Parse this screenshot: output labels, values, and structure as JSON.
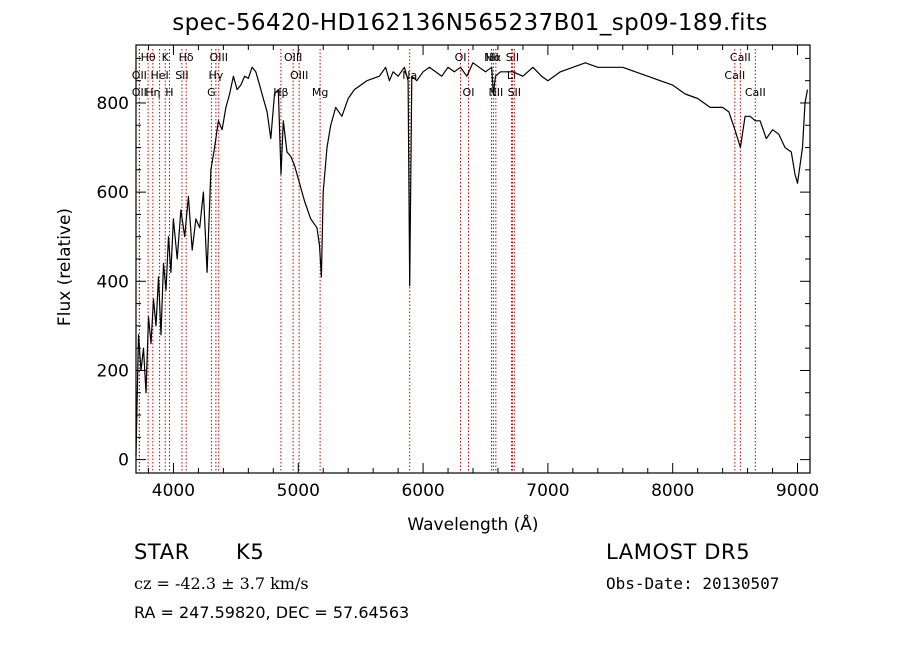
{
  "page": {
    "title": "spec-56420-HD162136N565237B01_sp09-189.fits"
  },
  "info": {
    "object_class": "STAR",
    "subclass": "K5",
    "survey": "LAMOST DR5",
    "cz": "cz = -42.3 ± 3.7 km/s",
    "obs_date": "Obs-Date: 20130507",
    "coords": "RA = 247.59820, DEC =  57.64563"
  },
  "chart_data": {
    "type": "line",
    "title": "spec-56420-HD162136N565237B01_sp09-189.fits",
    "xlabel": "Wavelength (Å)",
    "ylabel": "Flux (relative)",
    "xlim": [
      3700,
      9100
    ],
    "ylim": [
      -30,
      930
    ],
    "x_ticks": [
      4000,
      5000,
      6000,
      7000,
      8000,
      9000
    ],
    "y_ticks": [
      0,
      200,
      400,
      600,
      800
    ],
    "grid": false,
    "legend": "none",
    "line_color": "#000000",
    "marker_color": "#cc0000",
    "series": [
      {
        "x": [
          3700,
          3720,
          3740,
          3760,
          3780,
          3800,
          3820,
          3840,
          3860,
          3880,
          3900,
          3920,
          3940,
          3960,
          3980,
          4000,
          4030,
          4060,
          4090,
          4120,
          4150,
          4180,
          4210,
          4240,
          4270,
          4300,
          4330,
          4360,
          4390,
          4420,
          4450,
          4480,
          4510,
          4540,
          4570,
          4600,
          4630,
          4660,
          4690,
          4720,
          4750,
          4780,
          4810,
          4840,
          4862,
          4880,
          4910,
          4940,
          4970,
          5000,
          5050,
          5100,
          5150,
          5170,
          5185,
          5200,
          5230,
          5260,
          5300,
          5350,
          5400,
          5450,
          5500,
          5550,
          5600,
          5650,
          5700,
          5730,
          5760,
          5800,
          5850,
          5880,
          5893,
          5910,
          5950,
          6000,
          6050,
          6100,
          6150,
          6200,
          6250,
          6300,
          6350,
          6400,
          6450,
          6500,
          6550,
          6563,
          6580,
          6620,
          6680,
          6720,
          6800,
          6880,
          6950,
          7000,
          7100,
          7200,
          7300,
          7400,
          7500,
          7600,
          7700,
          7800,
          7900,
          8000,
          8100,
          8200,
          8300,
          8400,
          8450,
          8498,
          8542,
          8580,
          8620,
          8662,
          8700,
          8750,
          8800,
          8850,
          8900,
          8950,
          8980,
          9000,
          9020,
          9040,
          9060,
          9080
        ],
        "y": [
          10,
          280,
          200,
          250,
          150,
          320,
          260,
          360,
          300,
          410,
          280,
          440,
          380,
          500,
          420,
          540,
          450,
          560,
          500,
          590,
          470,
          540,
          520,
          600,
          420,
          650,
          700,
          760,
          740,
          790,
          820,
          860,
          830,
          840,
          860,
          855,
          880,
          870,
          840,
          810,
          780,
          720,
          820,
          830,
          640,
          760,
          690,
          680,
          660,
          630,
          580,
          540,
          520,
          480,
          410,
          600,
          700,
          750,
          790,
          770,
          810,
          830,
          840,
          850,
          855,
          860,
          880,
          850,
          870,
          860,
          880,
          850,
          390,
          860,
          850,
          870,
          880,
          870,
          860,
          880,
          870,
          880,
          860,
          890,
          880,
          870,
          880,
          820,
          860,
          870,
          870,
          870,
          860,
          880,
          860,
          850,
          870,
          880,
          890,
          880,
          880,
          880,
          870,
          860,
          850,
          840,
          820,
          810,
          790,
          790,
          780,
          740,
          700,
          770,
          770,
          760,
          760,
          720,
          740,
          730,
          700,
          690,
          640,
          620,
          660,
          700,
          800,
          830
        ]
      }
    ],
    "spectral_lines": [
      {
        "label": "Hθ",
        "wave": 3797,
        "row": 0
      },
      {
        "label": "OII",
        "wave": 3727,
        "row": 1
      },
      {
        "label": "OII",
        "wave": 3727,
        "row": 2
      },
      {
        "label": "Hη",
        "wave": 3835,
        "row": 2
      },
      {
        "label": "HeI",
        "wave": 3889,
        "row": 1
      },
      {
        "label": "K",
        "wave": 3934,
        "row": 0
      },
      {
        "label": "H",
        "wave": 3968,
        "row": 2
      },
      {
        "label": "SII",
        "wave": 4068,
        "row": 1
      },
      {
        "label": "Hδ",
        "wave": 4102,
        "row": 0
      },
      {
        "label": "OIII",
        "wave": 4363,
        "row": 0
      },
      {
        "label": "Hγ",
        "wave": 4340,
        "row": 1
      },
      {
        "label": "G",
        "wave": 4304,
        "row": 2
      },
      {
        "label": "Hβ",
        "wave": 4861,
        "row": 2
      },
      {
        "label": "OIII",
        "wave": 4959,
        "row": 0
      },
      {
        "label": "OIII",
        "wave": 5007,
        "row": 1
      },
      {
        "label": "Mg",
        "wave": 5175,
        "row": 2
      },
      {
        "label": "Na",
        "wave": 5893,
        "row": 1
      },
      {
        "label": "OI",
        "wave": 6300,
        "row": 0
      },
      {
        "label": "OI",
        "wave": 6364,
        "row": 2
      },
      {
        "label": "NII",
        "wave": 6548,
        "row": 0
      },
      {
        "label": "Hα",
        "wave": 6563,
        "row": 0
      },
      {
        "label": "NII",
        "wave": 6583,
        "row": 2
      },
      {
        "label": "SII",
        "wave": 6716,
        "row": 0
      },
      {
        "label": "Li",
        "wave": 6708,
        "row": 1
      },
      {
        "label": "SII",
        "wave": 6731,
        "row": 2
      },
      {
        "label": "CaII",
        "wave": 8498,
        "row": 1
      },
      {
        "label": "CaII",
        "wave": 8542,
        "row": 0
      },
      {
        "label": "CaII",
        "wave": 8662,
        "row": 2
      }
    ]
  }
}
